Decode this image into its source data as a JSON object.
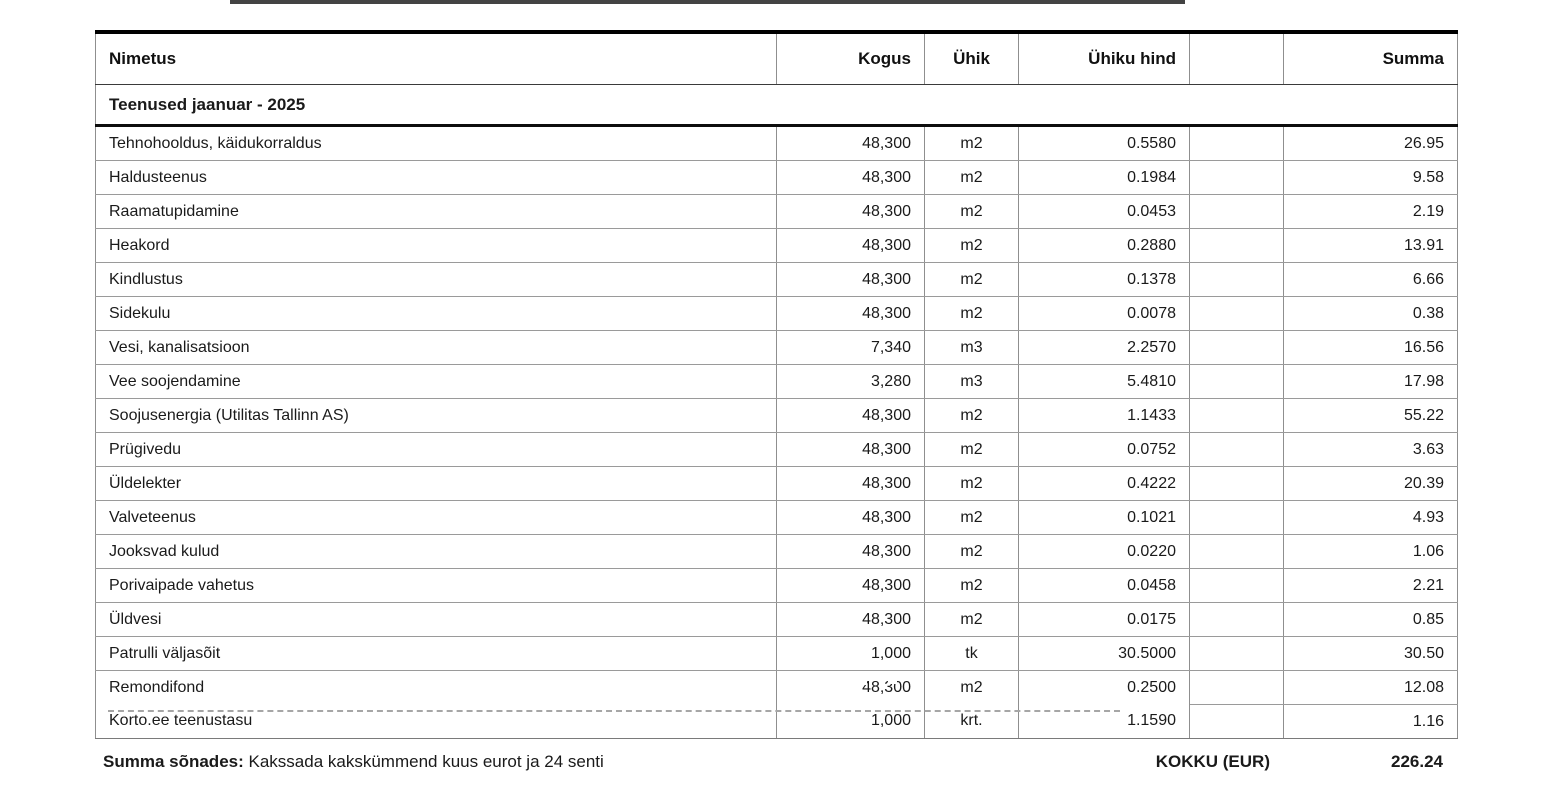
{
  "document_type": "invoice-services-table",
  "table": {
    "columns": [
      {
        "key": "name",
        "label": "Nimetus",
        "align": "left"
      },
      {
        "key": "qty",
        "label": "Kogus",
        "align": "right"
      },
      {
        "key": "unit",
        "label": "Ühik",
        "align": "center"
      },
      {
        "key": "price",
        "label": "Ühiku hind",
        "align": "right"
      },
      {
        "key": "blank",
        "label": "",
        "align": "right"
      },
      {
        "key": "sum",
        "label": "Summa",
        "align": "right"
      }
    ],
    "section_header": "Teenused jaanuar - 2025",
    "rows": [
      {
        "name": "Tehnohooldus, käidukorraldus",
        "qty": "48,300",
        "unit": "m2",
        "price": "0.5580",
        "sum": "26.95"
      },
      {
        "name": "Haldusteenus",
        "qty": "48,300",
        "unit": "m2",
        "price": "0.1984",
        "sum": "9.58"
      },
      {
        "name": "Raamatupidamine",
        "qty": "48,300",
        "unit": "m2",
        "price": "0.0453",
        "sum": "2.19"
      },
      {
        "name": "Heakord",
        "qty": "48,300",
        "unit": "m2",
        "price": "0.2880",
        "sum": "13.91"
      },
      {
        "name": "Kindlustus",
        "qty": "48,300",
        "unit": "m2",
        "price": "0.1378",
        "sum": "6.66"
      },
      {
        "name": "Sidekulu",
        "qty": "48,300",
        "unit": "m2",
        "price": "0.0078",
        "sum": "0.38"
      },
      {
        "name": "Vesi, kanalisatsioon",
        "qty": "7,340",
        "unit": "m3",
        "price": "2.2570",
        "sum": "16.56"
      },
      {
        "name": "Vee soojendamine",
        "qty": "3,280",
        "unit": "m3",
        "price": "5.4810",
        "sum": "17.98"
      },
      {
        "name": "Soojusenergia (Utilitas Tallinn AS)",
        "qty": "48,300",
        "unit": "m2",
        "price": "1.1433",
        "sum": "55.22"
      },
      {
        "name": "Prügivedu",
        "qty": "48,300",
        "unit": "m2",
        "price": "0.0752",
        "sum": "3.63"
      },
      {
        "name": "Üldelekter",
        "qty": "48,300",
        "unit": "m2",
        "price": "0.4222",
        "sum": "20.39"
      },
      {
        "name": "Valveteenus",
        "qty": "48,300",
        "unit": "m2",
        "price": "0.1021",
        "sum": "4.93"
      },
      {
        "name": "Jooksvad kulud",
        "qty": "48,300",
        "unit": "m2",
        "price": "0.0220",
        "sum": "1.06"
      },
      {
        "name": "Porivaipade vahetus",
        "qty": "48,300",
        "unit": "m2",
        "price": "0.0458",
        "sum": "2.21"
      },
      {
        "name": "Üldvesi",
        "qty": "48,300",
        "unit": "m2",
        "price": "0.0175",
        "sum": "0.85"
      },
      {
        "name": "Patrulli väljasõit",
        "qty": "1,000",
        "unit": "tk",
        "price": "30.5000",
        "sum": "30.50"
      },
      {
        "name": "Remondifond",
        "qty": "48,300",
        "unit": "m2",
        "price": "0.2500",
        "sum": "12.08",
        "erased_artifact": true,
        "dashed_border_artifact": true
      },
      {
        "name": "Korto.ee teenustasu",
        "qty": "1,000",
        "unit": "krt.",
        "price": "1.1590",
        "sum": "1.16"
      }
    ]
  },
  "footer": {
    "amount_in_words_label": "Summa sõnades:",
    "amount_in_words": "Kakssada kakskümmend kuus eurot ja 24 senti",
    "total_label": "KOKKU (EUR)",
    "total_value": "226.24"
  },
  "colors": {
    "background": "#ffffff",
    "text": "#1a1a1a",
    "heavy_border": "#000000",
    "light_border": "#9a9a9a",
    "artifact_dash": "#a6a6a6"
  }
}
